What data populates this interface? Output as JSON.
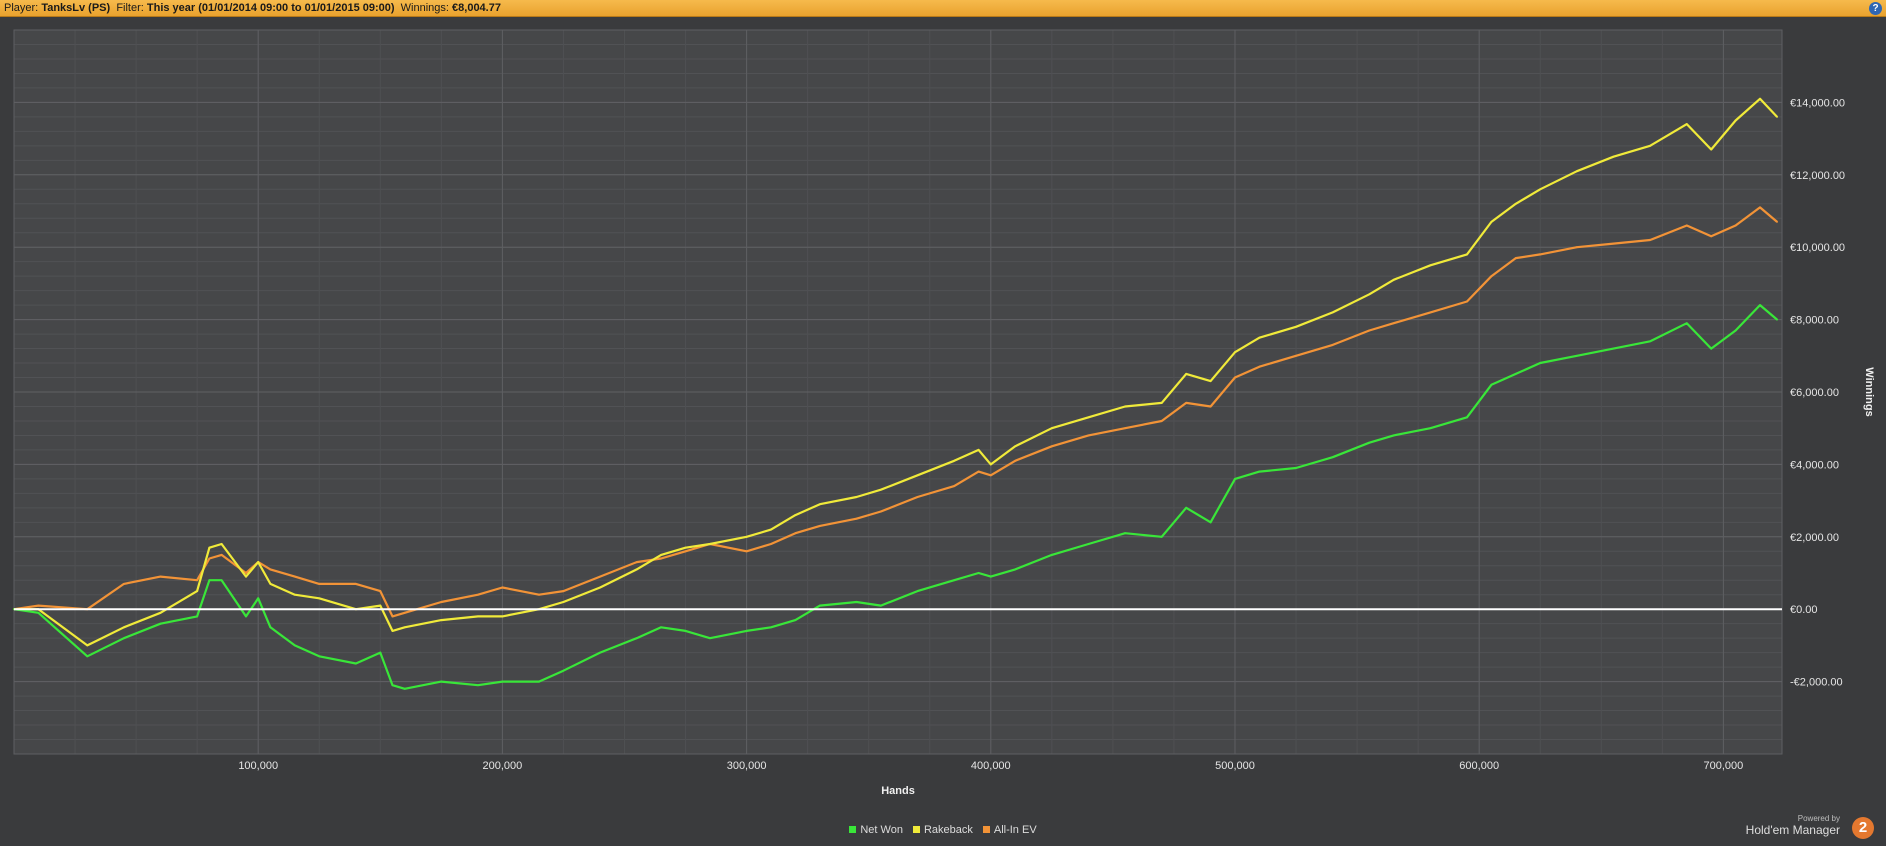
{
  "header": {
    "player_label": "Player:",
    "player": "TanksLv (PS)",
    "filter_label": "Filter:",
    "filter": "This year (01/01/2014 09:00 to 01/01/2015 09:00)",
    "winnings_label": "Winnings:",
    "winnings": "€8,004.77",
    "help_icon": "help-icon"
  },
  "brand": {
    "powered_by": "Powered by",
    "name": "Hold'em Manager",
    "logo_text": "2"
  },
  "chart_data": {
    "type": "line",
    "xlabel": "Hands",
    "ylabel": "Winnings",
    "xlim": [
      0,
      724000
    ],
    "ylim": [
      -4000,
      16000
    ],
    "x_ticks": [
      100000,
      200000,
      300000,
      400000,
      500000,
      600000,
      700000
    ],
    "x_tick_labels": [
      "100,000",
      "200,000",
      "300,000",
      "400,000",
      "500,000",
      "600,000",
      "700,000"
    ],
    "y_ticks": [
      -2000,
      0,
      2000,
      4000,
      6000,
      8000,
      10000,
      12000,
      14000
    ],
    "y_tick_labels": [
      "-€2,000.00",
      "€0.00",
      "€2,000.00",
      "€4,000.00",
      "€6,000.00",
      "€8,000.00",
      "€10,000.00",
      "€12,000.00",
      "€14,000.00"
    ],
    "zero_line": 0,
    "grid": true,
    "legend_position": "bottom-center",
    "series": [
      {
        "name": "Net Won",
        "color": "#39e639",
        "x": [
          0,
          10000,
          30000,
          45000,
          60000,
          75000,
          80000,
          85000,
          95000,
          100000,
          105000,
          115000,
          125000,
          140000,
          150000,
          155000,
          160000,
          175000,
          190000,
          200000,
          215000,
          225000,
          240000,
          255000,
          265000,
          275000,
          285000,
          300000,
          310000,
          320000,
          330000,
          345000,
          355000,
          370000,
          385000,
          395000,
          400000,
          410000,
          425000,
          440000,
          455000,
          470000,
          480000,
          490000,
          500000,
          510000,
          525000,
          540000,
          555000,
          565000,
          580000,
          595000,
          605000,
          615000,
          625000,
          640000,
          655000,
          670000,
          685000,
          695000,
          705000,
          715000,
          722000
        ],
        "values": [
          0,
          -100,
          -1300,
          -800,
          -400,
          -200,
          800,
          800,
          -200,
          300,
          -500,
          -1000,
          -1300,
          -1500,
          -1200,
          -2100,
          -2200,
          -2000,
          -2100,
          -2000,
          -2000,
          -1700,
          -1200,
          -800,
          -500,
          -600,
          -800,
          -600,
          -500,
          -300,
          100,
          200,
          100,
          500,
          800,
          1000,
          900,
          1100,
          1500,
          1800,
          2100,
          2000,
          2800,
          2400,
          3600,
          3800,
          3900,
          4200,
          4600,
          4800,
          5000,
          5300,
          6200,
          6500,
          6800,
          7000,
          7200,
          7400,
          7900,
          7200,
          7700,
          8400,
          8000
        ]
      },
      {
        "name": "Rakeback",
        "color": "#f0ea3a",
        "x": [
          0,
          10000,
          30000,
          45000,
          60000,
          75000,
          80000,
          85000,
          95000,
          100000,
          105000,
          115000,
          125000,
          140000,
          150000,
          155000,
          160000,
          175000,
          190000,
          200000,
          215000,
          225000,
          240000,
          255000,
          265000,
          275000,
          285000,
          300000,
          310000,
          320000,
          330000,
          345000,
          355000,
          370000,
          385000,
          395000,
          400000,
          410000,
          425000,
          440000,
          455000,
          470000,
          480000,
          490000,
          500000,
          510000,
          525000,
          540000,
          555000,
          565000,
          580000,
          595000,
          605000,
          615000,
          625000,
          640000,
          655000,
          670000,
          685000,
          695000,
          705000,
          715000,
          722000
        ],
        "values": [
          0,
          0,
          -1000,
          -500,
          -100,
          500,
          1700,
          1800,
          900,
          1300,
          700,
          400,
          300,
          0,
          100,
          -600,
          -500,
          -300,
          -200,
          -200,
          0,
          200,
          600,
          1100,
          1500,
          1700,
          1800,
          2000,
          2200,
          2600,
          2900,
          3100,
          3300,
          3700,
          4100,
          4400,
          4000,
          4500,
          5000,
          5300,
          5600,
          5700,
          6500,
          6300,
          7100,
          7500,
          7800,
          8200,
          8700,
          9100,
          9500,
          9800,
          10700,
          11200,
          11600,
          12100,
          12500,
          12800,
          13400,
          12700,
          13500,
          14100,
          13600
        ]
      },
      {
        "name": "All-In EV",
        "color": "#f29337",
        "x": [
          0,
          10000,
          30000,
          45000,
          60000,
          75000,
          80000,
          85000,
          95000,
          100000,
          105000,
          115000,
          125000,
          140000,
          150000,
          155000,
          160000,
          175000,
          190000,
          200000,
          215000,
          225000,
          240000,
          255000,
          265000,
          275000,
          285000,
          300000,
          310000,
          320000,
          330000,
          345000,
          355000,
          370000,
          385000,
          395000,
          400000,
          410000,
          425000,
          440000,
          455000,
          470000,
          480000,
          490000,
          500000,
          510000,
          525000,
          540000,
          555000,
          565000,
          580000,
          595000,
          605000,
          615000,
          625000,
          640000,
          655000,
          670000,
          685000,
          695000,
          705000,
          715000,
          722000
        ],
        "values": [
          0,
          100,
          0,
          700,
          900,
          800,
          1400,
          1500,
          1000,
          1300,
          1100,
          900,
          700,
          700,
          500,
          -200,
          -100,
          200,
          400,
          600,
          400,
          500,
          900,
          1300,
          1400,
          1600,
          1800,
          1600,
          1800,
          2100,
          2300,
          2500,
          2700,
          3100,
          3400,
          3800,
          3700,
          4100,
          4500,
          4800,
          5000,
          5200,
          5700,
          5600,
          6400,
          6700,
          7000,
          7300,
          7700,
          7900,
          8200,
          8500,
          9200,
          9700,
          9800,
          10000,
          10100,
          10200,
          10600,
          10300,
          10600,
          11100,
          10700
        ]
      }
    ]
  }
}
